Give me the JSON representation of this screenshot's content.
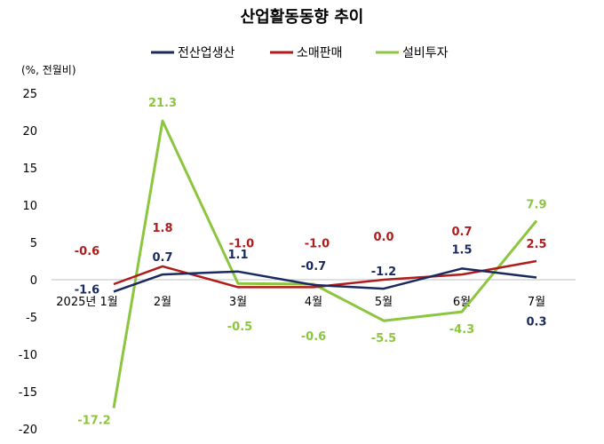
{
  "chart_data": {
    "type": "line",
    "title": "산업활동동향 추이",
    "unit_label": "(%, 전월비)",
    "categories": [
      "2025년 1월",
      "2월",
      "3월",
      "4월",
      "5월",
      "6월",
      "7월"
    ],
    "ylim": [
      -20,
      25
    ],
    "yticks": [
      25,
      20,
      15,
      10,
      5,
      0,
      -5,
      -10,
      -15,
      -20
    ],
    "grid": false,
    "legend_position": "top",
    "series": [
      {
        "name": "전산업생산",
        "color": "#1a2a5e",
        "values": [
          -1.6,
          0.7,
          1.1,
          -0.7,
          -1.2,
          1.5,
          0.3
        ],
        "labels": [
          "-1.6",
          "0.7",
          "1.1",
          "-0.7",
          "-1.2",
          "1.5",
          "0.3"
        ]
      },
      {
        "name": "소매판매",
        "color": "#b01c1c",
        "values": [
          -0.6,
          1.8,
          -1.0,
          -1.0,
          0.0,
          0.7,
          2.5
        ],
        "labels": [
          "-0.6",
          "1.8",
          "-1.0",
          "-1.0",
          "0.0",
          "0.7",
          "2.5"
        ]
      },
      {
        "name": "설비투자",
        "color": "#8cc63f",
        "values": [
          -17.2,
          21.3,
          -0.5,
          -0.6,
          -5.5,
          -4.3,
          7.9
        ],
        "labels": [
          "-17.2",
          "21.3",
          "-0.5",
          "-0.6",
          "-5.5",
          "-4.3",
          "7.9"
        ]
      }
    ]
  }
}
